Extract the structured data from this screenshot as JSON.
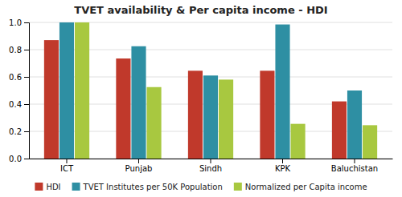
{
  "chart_data": {
    "type": "bar",
    "title": "TVET availability & Per capita income - HDI",
    "categories": [
      "ICT",
      "Punjab",
      "Sindh",
      "KPK",
      "Baluchistan"
    ],
    "series": [
      {
        "name": "HDI",
        "color": "#C0392B",
        "values": [
          0.87,
          0.735,
          0.645,
          0.645,
          0.42
        ]
      },
      {
        "name": "TVET Institutes per 50K Population",
        "color": "#2E8FA3",
        "values": [
          1.0,
          0.825,
          0.61,
          0.985,
          0.5
        ]
      },
      {
        "name": "Normalized per Capita income",
        "color": "#A8C840",
        "values": [
          1.0,
          0.525,
          0.58,
          0.255,
          0.245
        ]
      }
    ],
    "ylim": [
      0.0,
      1.0
    ],
    "yticks": [
      {
        "value": 0.0,
        "label": "0.0"
      },
      0.2,
      0.4,
      0.6,
      0.8,
      {
        "value": 1.0,
        "label": "1.0"
      }
    ],
    "grid": true,
    "legend": "bottom"
  }
}
